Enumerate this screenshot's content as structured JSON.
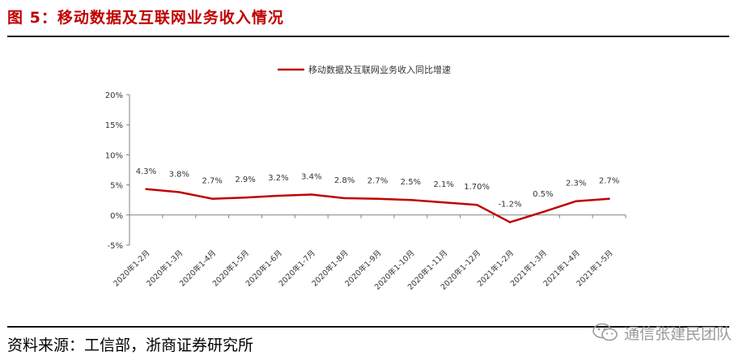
{
  "header": {
    "title": "图 5：移动数据及互联网业务收入情况"
  },
  "footer": {
    "source": "资料来源：工信部，浙商证券研究所",
    "watermark": "通信张建民团队",
    "watermark_icon": "wechat-icon"
  },
  "colors": {
    "title": "#c00000",
    "series": "#c00000",
    "axis": "#808080",
    "text": "#333333"
  },
  "chart_data": {
    "type": "line",
    "title": "",
    "xlabel": "",
    "ylabel": "",
    "ylim": [
      -5,
      20
    ],
    "yticks": [
      20,
      15,
      10,
      5,
      0,
      -5
    ],
    "ytick_labels": [
      "20%",
      "15%",
      "10%",
      "5%",
      "0%",
      "-5%"
    ],
    "grid": false,
    "legend_position": "top-center",
    "categories": [
      "2020年1-2月",
      "2020年1-3月",
      "2020年1-4月",
      "2020年1-5月",
      "2020年1-6月",
      "2020年1-7月",
      "2020年1-8月",
      "2020年1-9月",
      "2020年1-10月",
      "2020年1-11月",
      "2020年1-12月",
      "2021年1-2月",
      "2021年1-3月",
      "2021年1-4月",
      "2021年1-5月"
    ],
    "series": [
      {
        "name": "移动数据及互联网业务收入同比增速",
        "values": [
          4.3,
          3.8,
          2.7,
          2.9,
          3.2,
          3.4,
          2.8,
          2.7,
          2.5,
          2.1,
          1.7,
          -1.2,
          0.5,
          2.3,
          2.7
        ],
        "labels": [
          "4.3%",
          "3.8%",
          "2.7%",
          "2.9%",
          "3.2%",
          "3.4%",
          "2.8%",
          "2.7%",
          "2.5%",
          "2.1%",
          "1.70%",
          "-1.2%",
          "0.5%",
          "2.3%",
          "2.7%"
        ]
      }
    ]
  }
}
